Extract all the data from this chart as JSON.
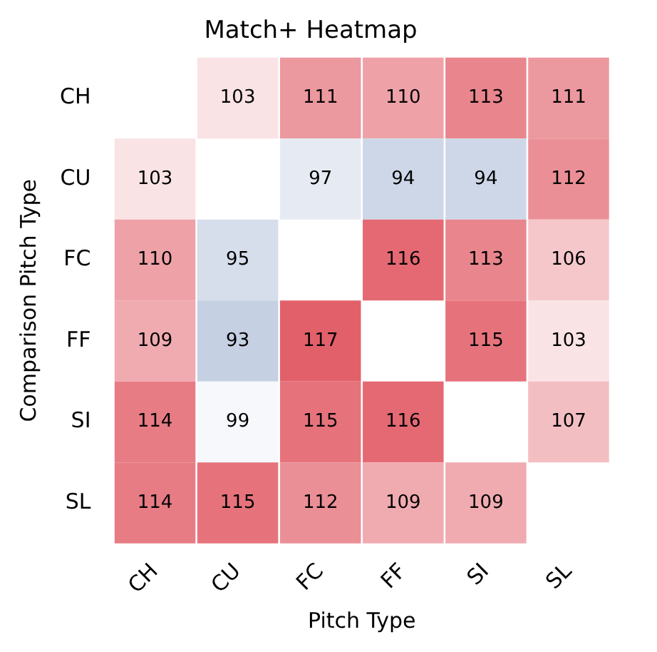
{
  "chart_data": {
    "type": "heatmap",
    "title": "Match+ Heatmap",
    "xlabel": "Pitch Type",
    "ylabel": "Comparison Pitch Type",
    "categories": [
      "CH",
      "CU",
      "FC",
      "FF",
      "SI",
      "SL"
    ],
    "y_categories": [
      "CH",
      "CU",
      "FC",
      "FF",
      "SI",
      "SL"
    ],
    "cells": [
      [
        null,
        103,
        111,
        110,
        113,
        111
      ],
      [
        103,
        null,
        97,
        94,
        94,
        112
      ],
      [
        110,
        95,
        null,
        116,
        113,
        106
      ],
      [
        109,
        93,
        117,
        null,
        115,
        103
      ],
      [
        114,
        99,
        115,
        116,
        null,
        107
      ],
      [
        114,
        115,
        112,
        109,
        109,
        null
      ]
    ],
    "data_labels": true
  }
}
